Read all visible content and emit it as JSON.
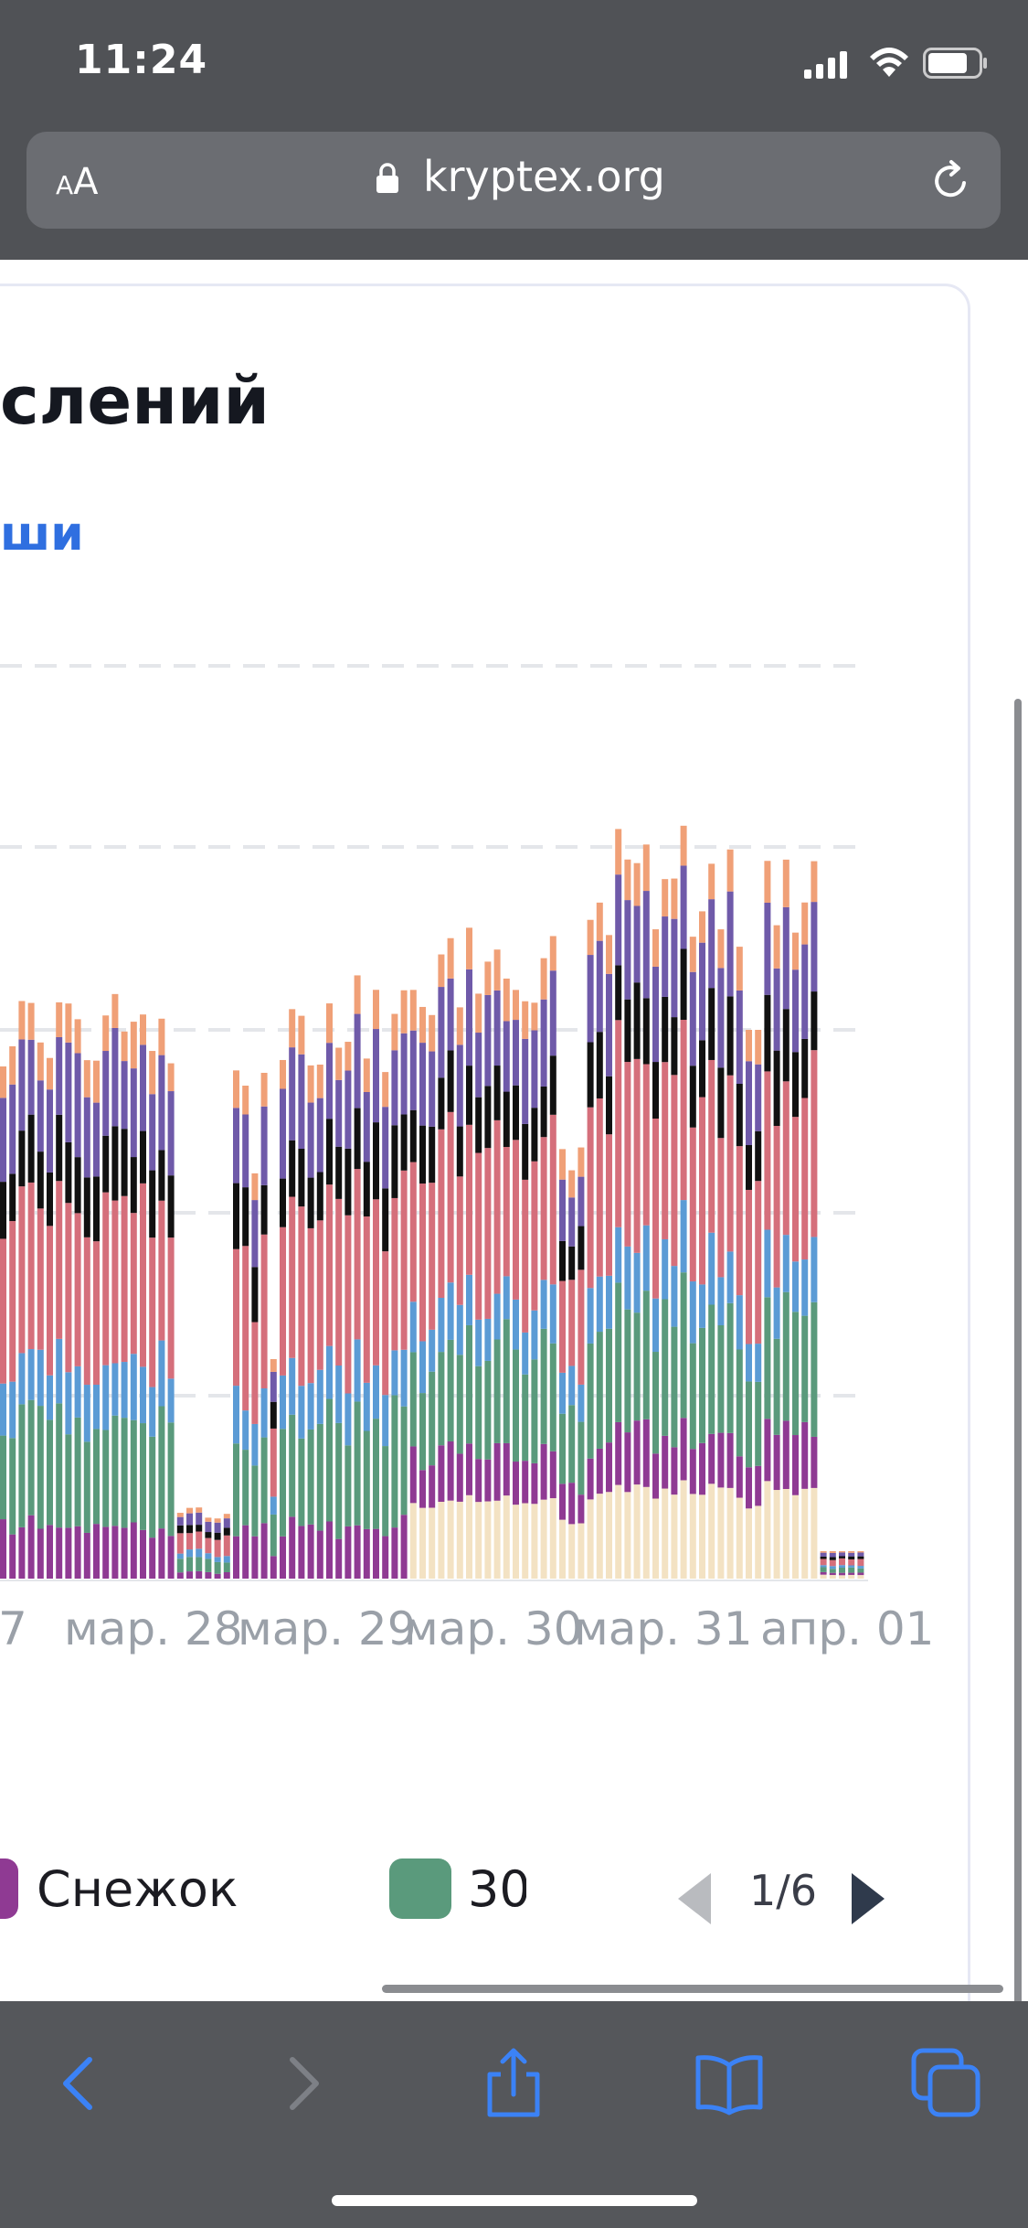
{
  "status": {
    "time": "11:24"
  },
  "browser": {
    "text_size_small": "A",
    "text_size_big": "A",
    "domain": "kryptex.org"
  },
  "card": {
    "title": "слений",
    "link": "ши"
  },
  "chart_data": {
    "type": "bar",
    "stacked": true,
    "title": "",
    "xlabel": "",
    "ylabel": "",
    "x_tick_labels": [
      "7",
      "мар. 28",
      "мар. 29",
      "мар. 30",
      "мар. 31",
      "апр. 01"
    ],
    "grid": true,
    "legend": "bottom",
    "series": [
      {
        "color": "#f3e2c3"
      },
      {
        "name": "Снежок",
        "color": "#8f3a93"
      },
      {
        "color": "#5a9a7c"
      },
      {
        "color": "#5b9bd5"
      },
      {
        "color": "#d56f7b"
      },
      {
        "color": "#111111"
      },
      {
        "color": "#6f5aa9"
      },
      {
        "color": "#f0a077"
      }
    ]
  },
  "legend": [
    {
      "label": "Снежок",
      "color": "#8f3a93"
    },
    {
      "label": "30",
      "color": "#5a9a7c"
    }
  ],
  "pager": {
    "text": "1/6"
  },
  "toolbar": {
    "back": "back-icon",
    "forward": "forward-icon",
    "share": "share-icon",
    "bookmarks": "bookmarks-icon",
    "tabs": "tabs-icon"
  }
}
